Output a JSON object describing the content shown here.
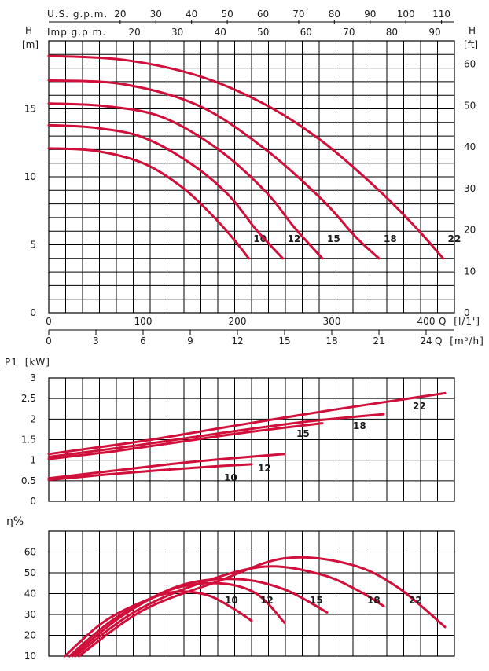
{
  "style": {
    "curve_color": "#d0103a",
    "grid_color": "#000000",
    "background": "#ffffff"
  },
  "chart_data": [
    {
      "type": "line",
      "name": "head",
      "ylabel_left": "H",
      "yunit_left": "[m]",
      "ylabel_right": "H",
      "yunit_right": "[ft]",
      "x_axis_lps": {
        "label": "Q",
        "unit": "[l/1']",
        "range": [
          0,
          430
        ],
        "ticks": [
          0,
          100,
          200,
          300,
          400
        ]
      },
      "x_axis_m3h": {
        "label": "Q",
        "unit": "[m³/h]",
        "ticks": [
          0,
          3,
          6,
          9,
          12,
          15,
          18,
          21,
          24
        ]
      },
      "x_axis_usgpm": {
        "label": "U.S. g.p.m.",
        "ticks": [
          20,
          30,
          40,
          50,
          60,
          70,
          80,
          90,
          100,
          110
        ]
      },
      "x_axis_impgpm": {
        "label": "Imp g.p.m.",
        "ticks": [
          20,
          30,
          40,
          50,
          60,
          70,
          80,
          90
        ]
      },
      "y_left": {
        "range": [
          0,
          20
        ],
        "ticks": [
          0,
          5,
          10,
          15
        ]
      },
      "y_right": {
        "ticks": [
          0,
          10,
          20,
          30,
          40,
          50,
          60
        ]
      },
      "series": [
        {
          "name": "10",
          "points": [
            [
              0,
              12.1
            ],
            [
              50,
              11.9
            ],
            [
              100,
              11.0
            ],
            [
              140,
              9.3
            ],
            [
              170,
              7.4
            ],
            [
              195,
              5.5
            ],
            [
              212,
              4.0
            ]
          ]
        },
        {
          "name": "12",
          "points": [
            [
              0,
              13.8
            ],
            [
              50,
              13.6
            ],
            [
              100,
              12.9
            ],
            [
              150,
              11.0
            ],
            [
              190,
              8.7
            ],
            [
              220,
              6.1
            ],
            [
              248,
              4.0
            ]
          ]
        },
        {
          "name": "15",
          "points": [
            [
              0,
              15.4
            ],
            [
              60,
              15.2
            ],
            [
              120,
              14.4
            ],
            [
              180,
              12.0
            ],
            [
              230,
              8.9
            ],
            [
              260,
              6.3
            ],
            [
              290,
              4.0
            ]
          ]
        },
        {
          "name": "18",
          "points": [
            [
              0,
              17.1
            ],
            [
              80,
              16.8
            ],
            [
              160,
              15.2
            ],
            [
              230,
              12.0
            ],
            [
              290,
              8.3
            ],
            [
              325,
              5.6
            ],
            [
              350,
              4.0
            ]
          ]
        },
        {
          "name": "22",
          "points": [
            [
              0,
              18.9
            ],
            [
              80,
              18.6
            ],
            [
              160,
              17.4
            ],
            [
              230,
              15.3
            ],
            [
              290,
              12.6
            ],
            [
              350,
              9.0
            ],
            [
              390,
              6.2
            ],
            [
              418,
              4.0
            ]
          ]
        }
      ]
    },
    {
      "type": "line",
      "name": "power",
      "ylabel": "P1",
      "yunit": "[kW]",
      "x_range": [
        0,
        430
      ],
      "y_range": [
        0,
        3
      ],
      "y_ticks": [
        "0",
        "0.5",
        "1",
        "1.5",
        "2",
        "2.5",
        "3"
      ],
      "series": [
        {
          "name": "10",
          "points": [
            [
              0,
              0.52
            ],
            [
              60,
              0.65
            ],
            [
              120,
              0.76
            ],
            [
              170,
              0.84
            ],
            [
              215,
              0.9
            ]
          ]
        },
        {
          "name": "12",
          "points": [
            [
              0,
              0.56
            ],
            [
              60,
              0.72
            ],
            [
              120,
              0.88
            ],
            [
              180,
              1.02
            ],
            [
              250,
              1.15
            ]
          ]
        },
        {
          "name": "15",
          "points": [
            [
              0,
              1.03
            ],
            [
              70,
              1.22
            ],
            [
              140,
              1.45
            ],
            [
              210,
              1.68
            ],
            [
              290,
              1.9
            ]
          ]
        },
        {
          "name": "18",
          "points": [
            [
              0,
              1.08
            ],
            [
              90,
              1.35
            ],
            [
              180,
              1.65
            ],
            [
              270,
              1.93
            ],
            [
              355,
              2.12
            ]
          ]
        },
        {
          "name": "22",
          "points": [
            [
              0,
              1.15
            ],
            [
              100,
              1.47
            ],
            [
              200,
              1.85
            ],
            [
              300,
              2.22
            ],
            [
              420,
              2.63
            ]
          ]
        }
      ]
    },
    {
      "type": "line",
      "name": "efficiency",
      "ylabel": "η%",
      "x_range": [
        0,
        430
      ],
      "y_range": [
        10,
        70
      ],
      "y_ticks": [
        "10",
        "20",
        "30",
        "40",
        "50",
        "60"
      ],
      "series": [
        {
          "name": "10",
          "points": [
            [
              17,
              10
            ],
            [
              60,
              27
            ],
            [
              110,
              38
            ],
            [
              140,
              41
            ],
            [
              170,
              39
            ],
            [
              195,
              33
            ],
            [
              215,
              27
            ]
          ]
        },
        {
          "name": "12",
          "points": [
            [
              22,
              10
            ],
            [
              70,
              28
            ],
            [
              130,
              42
            ],
            [
              180,
              45
            ],
            [
              220,
              40
            ],
            [
              250,
              26
            ]
          ]
        },
        {
          "name": "15",
          "points": [
            [
              25,
              10
            ],
            [
              80,
              30
            ],
            [
              140,
              44
            ],
            [
              200,
              47
            ],
            [
              250,
              42
            ],
            [
              295,
              31
            ]
          ]
        },
        {
          "name": "18",
          "points": [
            [
              28,
              10
            ],
            [
              90,
              31
            ],
            [
              160,
              45
            ],
            [
              230,
              53
            ],
            [
              290,
              49
            ],
            [
              330,
              41
            ],
            [
              355,
              34
            ]
          ]
        },
        {
          "name": "22",
          "points": [
            [
              32,
              10
            ],
            [
              100,
              32
            ],
            [
              180,
              46
            ],
            [
              250,
              57
            ],
            [
              320,
              54
            ],
            [
              370,
              43
            ],
            [
              420,
              24
            ]
          ]
        }
      ]
    }
  ]
}
